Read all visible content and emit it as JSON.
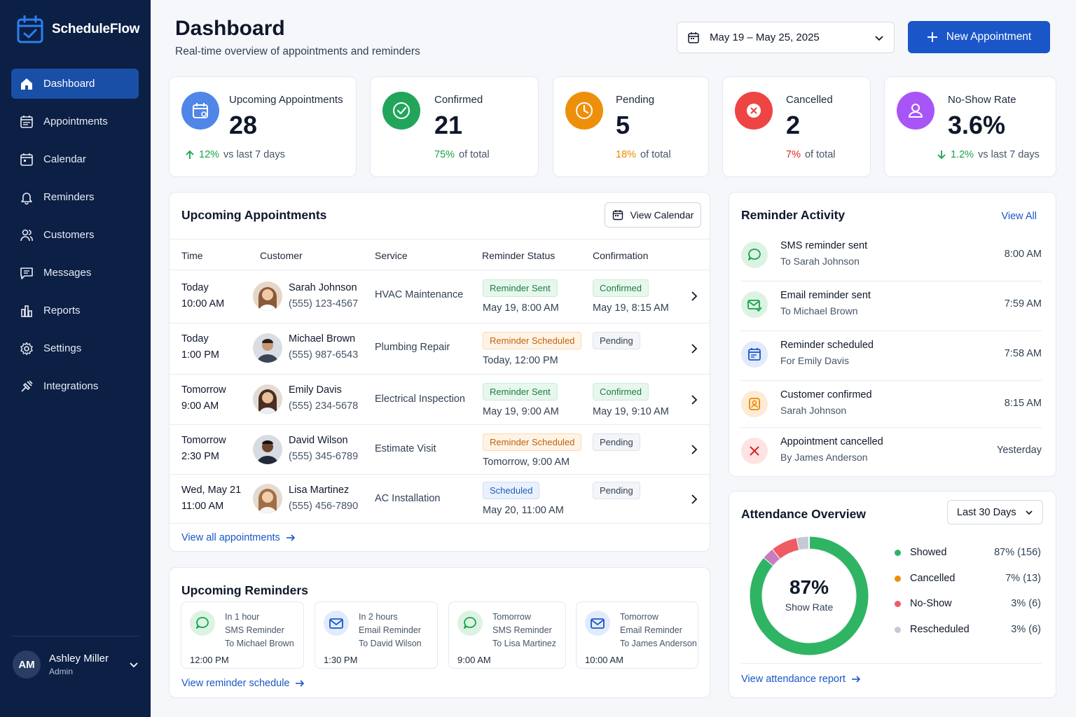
{
  "brand": {
    "name": "ScheduleFlow"
  },
  "nav": [
    {
      "label": "Dashboard",
      "icon": "home-icon"
    },
    {
      "label": "Appointments",
      "icon": "calendar-list-icon"
    },
    {
      "label": "Calendar",
      "icon": "calendar-icon"
    },
    {
      "label": "Reminders",
      "icon": "bell-icon"
    },
    {
      "label": "Customers",
      "icon": "users-icon"
    },
    {
      "label": "Messages",
      "icon": "message-icon"
    },
    {
      "label": "Reports",
      "icon": "reports-icon"
    },
    {
      "label": "Settings",
      "icon": "gear-icon"
    },
    {
      "label": "Integrations",
      "icon": "integrations-icon"
    }
  ],
  "user": {
    "initials": "AM",
    "name": "Ashley Miller",
    "role": "Admin"
  },
  "header": {
    "title": "Dashboard",
    "subtitle": "Real-time overview of appointments and reminders",
    "date_range": "May 19 – May 25, 2025",
    "new_button": "New Appointment"
  },
  "stats": [
    {
      "label": "Upcoming Appointments",
      "value": "28",
      "delta": "12%",
      "delta_text": "vs last 7 days",
      "color": "#4f86e8"
    },
    {
      "label": "Confirmed",
      "value": "21",
      "delta": "75%",
      "delta_text": "of total",
      "color": "#22a55a"
    },
    {
      "label": "Pending",
      "value": "5",
      "delta": "18%",
      "delta_text": "of total",
      "color": "#ee8f0b"
    },
    {
      "label": "Cancelled",
      "value": "2",
      "delta": "7%",
      "delta_text": "of total",
      "color": "#ef4444"
    },
    {
      "label": "No-Show Rate",
      "value": "3.6%",
      "delta": "1.2%",
      "delta_text": "vs last 7 days",
      "color": "#a855f7"
    }
  ],
  "appointments": {
    "title": "Upcoming Appointments",
    "view_calendar": "View Calendar",
    "columns": [
      "Time",
      "Customer",
      "Service",
      "Reminder Status",
      "Confirmation"
    ],
    "rows": [
      {
        "day": "Today",
        "time": "10:00 AM",
        "name": "Sarah Johnson",
        "phone": "(555) 123-4567",
        "service": "HVAC Maintenance",
        "reminder": "Reminder Sent",
        "reminder_time": "May 19, 8:00 AM",
        "confirmation": "Confirmed",
        "confirmation_time": "May 19, 8:15 AM"
      },
      {
        "day": "Today",
        "time": "1:00 PM",
        "name": "Michael Brown",
        "phone": "(555) 987-6543",
        "service": "Plumbing Repair",
        "reminder": "Reminder Scheduled",
        "reminder_time": "Today, 12:00 PM",
        "confirmation": "Pending",
        "confirmation_time": ""
      },
      {
        "day": "Tomorrow",
        "time": "9:00 AM",
        "name": "Emily Davis",
        "phone": "(555) 234-5678",
        "service": "Electrical Inspection",
        "reminder": "Reminder Sent",
        "reminder_time": "May 19, 9:00 AM",
        "confirmation": "Confirmed",
        "confirmation_time": "May 19, 9:10 AM"
      },
      {
        "day": "Tomorrow",
        "time": "2:30 PM",
        "name": "David Wilson",
        "phone": "(555) 345-6789",
        "service": "Estimate Visit",
        "reminder": "Reminder Scheduled",
        "reminder_time": "Tomorrow, 9:00 AM",
        "confirmation": "Pending",
        "confirmation_time": ""
      },
      {
        "day": "Wed, May 21",
        "time": "11:00 AM",
        "name": "Lisa Martinez",
        "phone": "(555) 456-7890",
        "service": "AC Installation",
        "reminder": "Scheduled",
        "reminder_time": "May 20, 11:00 AM",
        "confirmation": "Pending",
        "confirmation_time": ""
      }
    ],
    "view_all": "View all appointments"
  },
  "reminders": {
    "title": "Upcoming Reminders",
    "items": [
      {
        "when": "In 1 hour",
        "type": "SMS Reminder",
        "to": "To Michael Brown",
        "time": "12:00 PM",
        "icon": "sms-icon"
      },
      {
        "when": "In 2 hours",
        "type": "Email Reminder",
        "to": "To David Wilson",
        "time": "1:30 PM",
        "icon": "email-icon"
      },
      {
        "when": "Tomorrow",
        "type": "SMS Reminder",
        "to": "To Lisa Martinez",
        "time": "9:00 AM",
        "icon": "sms-icon"
      },
      {
        "when": "Tomorrow",
        "type": "Email Reminder",
        "to": "To James Anderson",
        "time": "10:00 AM",
        "icon": "email-icon"
      }
    ],
    "view_schedule": "View reminder schedule"
  },
  "activity": {
    "title": "Reminder Activity",
    "view_all": "View All",
    "items": [
      {
        "title": "SMS reminder sent",
        "sub": "To Sarah Johnson",
        "time": "8:00 AM",
        "icon": "sms-icon"
      },
      {
        "title": "Email reminder sent",
        "sub": "To Michael Brown",
        "time": "7:59 AM",
        "icon": "email-sent-icon"
      },
      {
        "title": "Reminder scheduled",
        "sub": "For Emily Davis",
        "time": "7:58 AM",
        "icon": "calendar-icon"
      },
      {
        "title": "Customer confirmed",
        "sub": "Sarah Johnson",
        "time": "8:15 AM",
        "icon": "user-check-icon"
      },
      {
        "title": "Appointment cancelled",
        "sub": "By James Anderson",
        "time": "Yesterday",
        "icon": "cancel-icon"
      }
    ]
  },
  "attendance": {
    "title": "Attendance Overview",
    "range": "Last 30 Days",
    "center_value": "87%",
    "center_label": "Show Rate",
    "legend": [
      {
        "name": "Showed",
        "value": "87% (156)",
        "color": "#2fb463"
      },
      {
        "name": "Cancelled",
        "value": "7% (13)",
        "color": "#ee8f0b"
      },
      {
        "name": "No-Show",
        "value": "3% (6)",
        "color": "#ef5b63"
      },
      {
        "name": "Rescheduled",
        "value": "3% (6)",
        "color": "#c3c9d6"
      }
    ],
    "view_report": "View attendance report"
  },
  "chart_data": {
    "type": "pie",
    "categories": [
      "Showed",
      "Cancelled",
      "No-Show",
      "Rescheduled"
    ],
    "values": [
      156,
      13,
      6,
      6
    ],
    "title": "Attendance Overview",
    "colors": [
      "#2fb463",
      "#ef5b63",
      "#c77dbf",
      "#c3c9d6"
    ]
  }
}
